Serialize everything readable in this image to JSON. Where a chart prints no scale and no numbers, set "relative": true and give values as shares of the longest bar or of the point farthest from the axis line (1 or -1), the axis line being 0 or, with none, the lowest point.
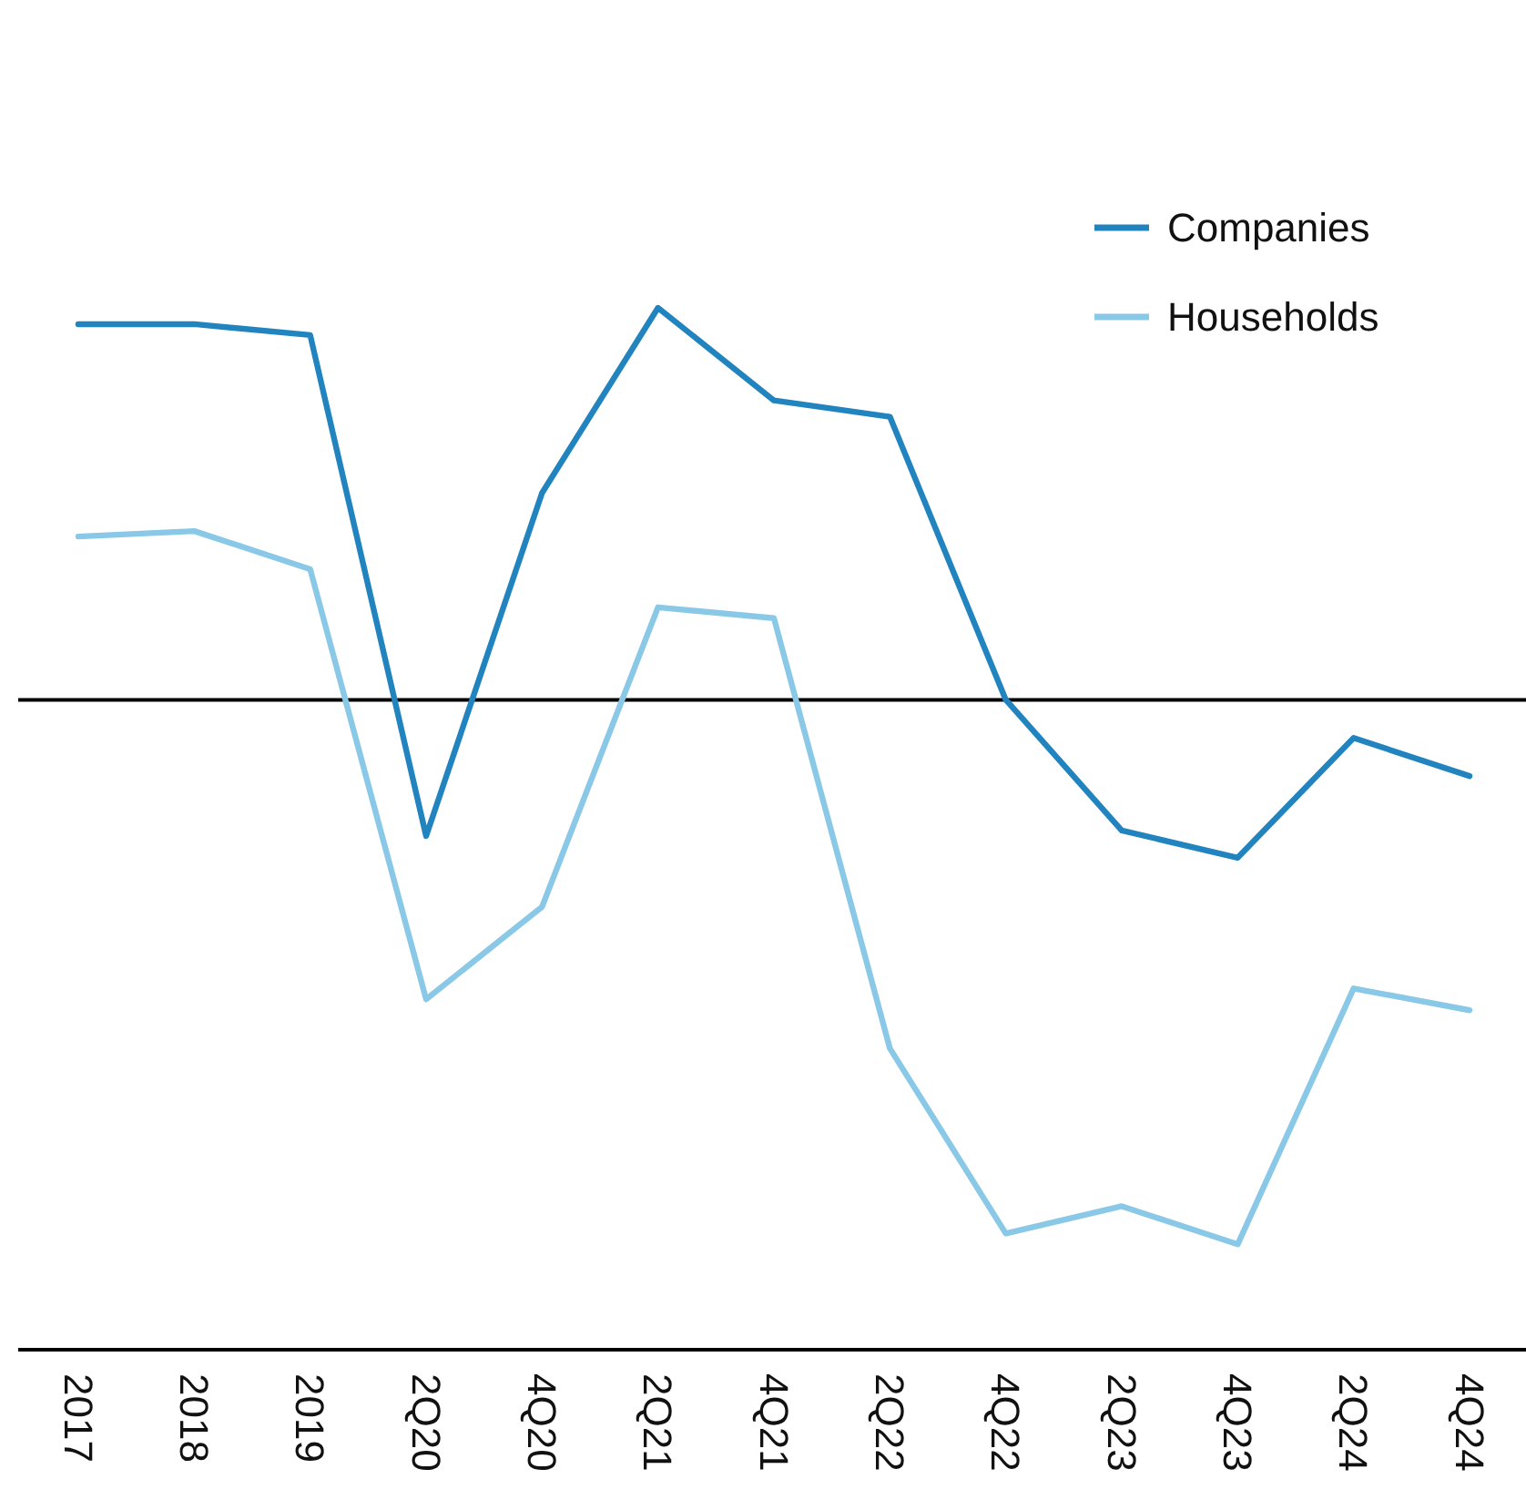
{
  "chart_data": {
    "type": "line",
    "relative": true,
    "categories": [
      "2017",
      "2018",
      "2019",
      "2Q20",
      "4Q20",
      "2Q21",
      "4Q21",
      "2Q22",
      "4Q22",
      "2Q23",
      "4Q23",
      "2Q24",
      "4Q24"
    ],
    "series": [
      {
        "name": "Companies",
        "color": "#2284bf",
        "values": [
          0.69,
          0.69,
          0.67,
          -0.25,
          0.38,
          0.72,
          0.55,
          0.52,
          0,
          -0.24,
          -0.29,
          -0.07,
          -0.14
        ]
      },
      {
        "name": "Households",
        "color": "#89c8e6",
        "values": [
          0.3,
          0.31,
          0.24,
          -0.55,
          -0.38,
          0.17,
          0.15,
          -0.64,
          -0.98,
          -0.93,
          -1,
          -0.53,
          -0.57
        ]
      }
    ],
    "ref_lines": [
      {
        "axis": "y",
        "value": 0,
        "color": "#000000"
      }
    ],
    "legend": "top right"
  }
}
